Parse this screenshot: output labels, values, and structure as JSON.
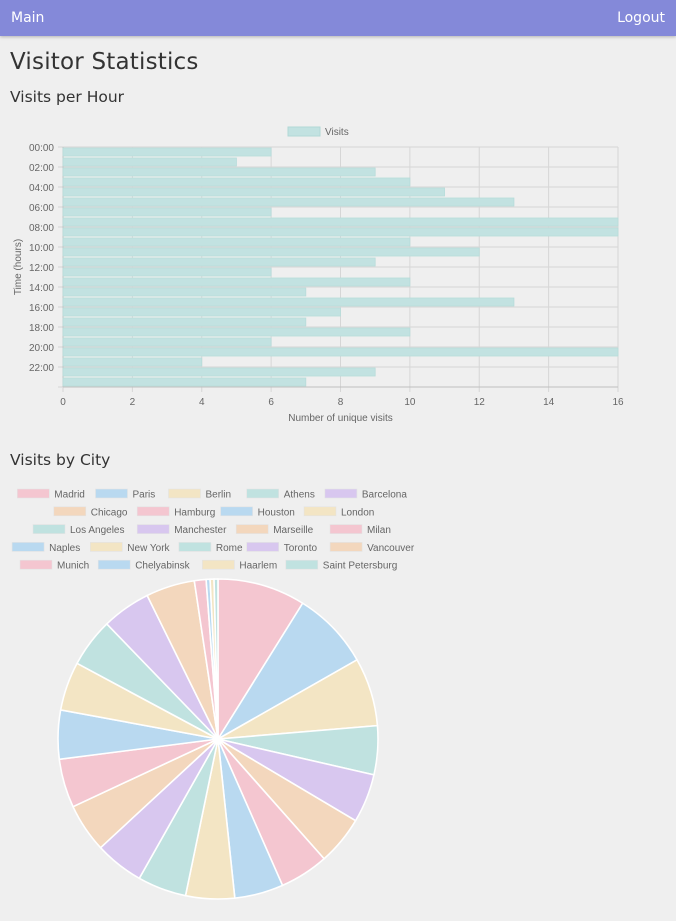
{
  "nav": {
    "main_label": "Main",
    "logout_label": "Logout"
  },
  "page": {
    "title": "Visitor Statistics",
    "hour_heading": "Visits per Hour",
    "city_heading": "Visits by City"
  },
  "chart_data": [
    {
      "type": "bar",
      "orientation": "horizontal",
      "categories": [
        "00:00",
        "01:00",
        "02:00",
        "03:00",
        "04:00",
        "05:00",
        "06:00",
        "07:00",
        "08:00",
        "09:00",
        "10:00",
        "11:00",
        "12:00",
        "13:00",
        "14:00",
        "15:00",
        "16:00",
        "17:00",
        "18:00",
        "19:00",
        "20:00",
        "21:00",
        "22:00",
        "23:00"
      ],
      "tick_labels": [
        "00:00",
        "02:00",
        "04:00",
        "06:00",
        "08:00",
        "10:00",
        "12:00",
        "14:00",
        "16:00",
        "18:00",
        "20:00",
        "22:00"
      ],
      "series": [
        {
          "name": "Visits",
          "values": [
            6,
            5,
            9,
            10,
            11,
            13,
            6,
            16,
            16,
            10,
            12,
            9,
            6,
            10,
            7,
            13,
            8,
            7,
            10,
            6,
            16,
            4,
            9,
            7
          ]
        }
      ],
      "xlabel": "Number of unique visits",
      "ylabel": "Time (hours)",
      "xlim": [
        0,
        16
      ],
      "xticks": [
        0,
        2,
        4,
        6,
        8,
        10,
        12,
        14,
        16
      ],
      "legend": "top",
      "grid": true,
      "color": "#c2e2e1"
    },
    {
      "type": "pie",
      "labels": [
        "Madrid",
        "Paris",
        "Berlin",
        "Athens",
        "Barcelona",
        "Chicago",
        "Hamburg",
        "Houston",
        "London",
        "Los Angeles",
        "Manchester",
        "Marseille",
        "Milan",
        "Naples",
        "New York",
        "Rome",
        "Toronto",
        "Vancouver",
        "Munich",
        "Chelyabinsk",
        "Haarlem",
        "Saint Petersburg"
      ],
      "values": [
        9,
        8,
        7,
        5,
        5,
        5,
        5,
        5,
        5,
        5,
        5,
        5,
        5,
        5,
        5,
        5,
        5,
        5,
        1.2,
        0.4,
        0.4,
        0.4
      ],
      "legend": "top",
      "colors": [
        "#f4c6d0",
        "#b9d9f0",
        "#f3e5c4",
        "#c0e2e0",
        "#d8c7ef",
        "#f3d7bd"
      ]
    }
  ]
}
